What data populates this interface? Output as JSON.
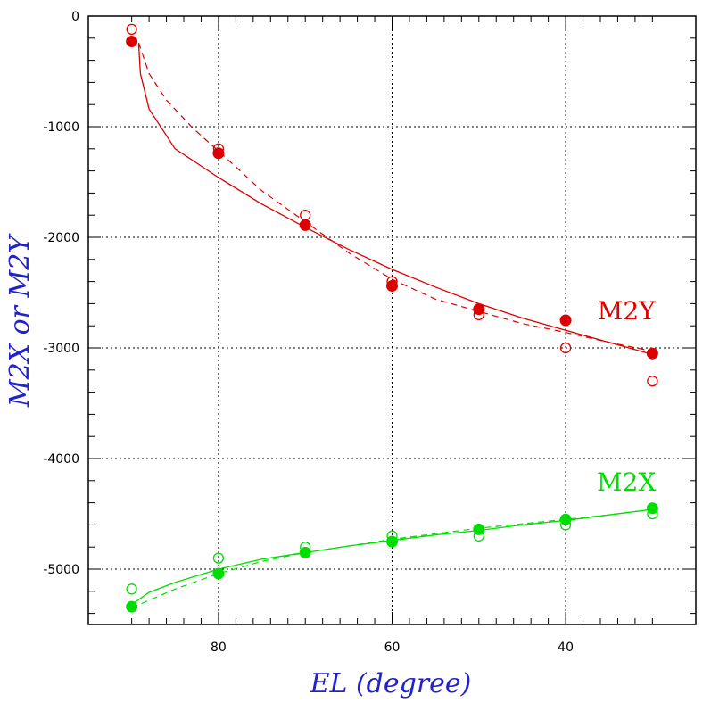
{
  "chart_data": {
    "type": "scatter",
    "xlabel": "EL (degree)",
    "ylabel": "M2X or M2Y",
    "x_reversed": true,
    "xlim": [
      95,
      25
    ],
    "ylim": [
      -5500,
      0
    ],
    "grid": true,
    "grid_style": "dotted",
    "x_ticks": [
      80,
      60,
      40
    ],
    "x_tick_labels": [
      "80",
      "60",
      "40"
    ],
    "y_ticks": [
      0,
      -1000,
      -2000,
      -3000,
      -4000,
      -5000
    ],
    "y_tick_labels": [
      "0",
      "-1000",
      "-2000",
      "-3000",
      "-4000",
      "-5000"
    ],
    "axis_title_color": "#2222cc",
    "series": [
      {
        "name": "M2Y",
        "color": "#dd0000",
        "label_text": "M2Y",
        "label_at": [
          33,
          -2740
        ],
        "filled_points": {
          "x": [
            90,
            80,
            70,
            60,
            50,
            40,
            30
          ],
          "y": [
            -230,
            -1240,
            -1890,
            -2440,
            -2650,
            -2750,
            -3050
          ]
        },
        "open_points": {
          "x": [
            90,
            80,
            70,
            60,
            50,
            40,
            30
          ],
          "y": [
            -120,
            -1200,
            -1800,
            -2400,
            -2700,
            -3000,
            -3300
          ]
        },
        "solid_fit": {
          "x": [
            89.2,
            89.0,
            88.0,
            85.0,
            80.0,
            75.0,
            70.0,
            65.0,
            60.0,
            55.0,
            50.0,
            45.0,
            40.0,
            35.0,
            30.0
          ],
          "y": [
            -250,
            -520,
            -840,
            -1200,
            -1460,
            -1700,
            -1910,
            -2110,
            -2290,
            -2450,
            -2600,
            -2730,
            -2840,
            -2950,
            -3060
          ]
        },
        "dashed_fit": {
          "x": [
            89.2,
            88.0,
            86.0,
            83.0,
            80.0,
            75.0,
            70.0,
            65.0,
            60.0,
            55.0,
            50.0,
            45.0,
            40.0,
            35.0,
            30.0
          ],
          "y": [
            -240,
            -520,
            -760,
            -1010,
            -1220,
            -1580,
            -1860,
            -2140,
            -2380,
            -2560,
            -2670,
            -2780,
            -2860,
            -2950,
            -3030
          ]
        }
      },
      {
        "name": "M2X",
        "color": "#00dd00",
        "label_text": "M2X",
        "label_at": [
          33,
          -4290
        ],
        "filled_points": {
          "x": [
            90,
            80,
            70,
            60,
            50,
            40,
            30
          ],
          "y": [
            -5340,
            -5040,
            -4850,
            -4750,
            -4640,
            -4550,
            -4450
          ]
        },
        "open_points": {
          "x": [
            90,
            80,
            70,
            60,
            50,
            40,
            30
          ],
          "y": [
            -5180,
            -4900,
            -4800,
            -4700,
            -4700,
            -4600,
            -4500
          ]
        },
        "solid_fit": {
          "x": [
            90.0,
            88.0,
            85.0,
            80.0,
            75.0,
            70.0,
            65.0,
            60.0,
            55.0,
            50.0,
            45.0,
            40.0,
            35.0,
            30.0
          ],
          "y": [
            -5320,
            -5210,
            -5120,
            -5000,
            -4910,
            -4850,
            -4790,
            -4740,
            -4690,
            -4650,
            -4600,
            -4560,
            -4510,
            -4460
          ]
        },
        "dashed_fit": {
          "x": [
            90.0,
            85.0,
            80.0,
            75.0,
            70.0,
            65.0,
            60.0,
            55.0,
            50.0,
            45.0,
            40.0,
            35.0,
            30.0
          ],
          "y": [
            -5350,
            -5180,
            -5040,
            -4930,
            -4850,
            -4790,
            -4730,
            -4680,
            -4630,
            -4590,
            -4550,
            -4510,
            -4460
          ]
        }
      }
    ]
  }
}
